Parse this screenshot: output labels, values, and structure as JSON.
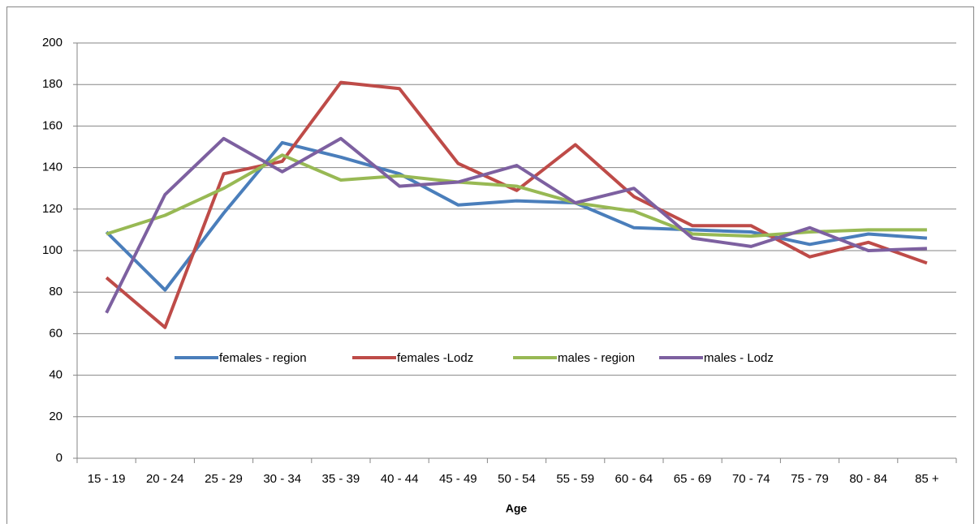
{
  "chart_data": {
    "type": "line",
    "x_label": "Age",
    "categories": [
      "15 - 19",
      "20 - 24",
      "25 - 29",
      "30 - 34",
      "35 - 39",
      "40 - 44",
      "45 - 49",
      "50 - 54",
      "55 - 59",
      "60 - 64",
      "65 - 69",
      "70 - 74",
      "75 - 79",
      "80 - 84",
      "85 +"
    ],
    "series": [
      {
        "name": "females - region",
        "color": "#4a7ebb",
        "values": [
          109,
          81,
          118,
          152,
          145,
          137,
          122,
          124,
          123,
          111,
          110,
          109,
          103,
          108,
          106
        ]
      },
      {
        "name": "females -Lodz",
        "color": "#be4b48",
        "values": [
          87,
          63,
          137,
          143,
          181,
          178,
          142,
          129,
          151,
          126,
          112,
          112,
          97,
          104,
          94
        ]
      },
      {
        "name": "males - region",
        "color": "#98b954",
        "values": [
          108,
          117,
          130,
          146,
          134,
          136,
          133,
          131,
          123,
          119,
          108,
          107,
          109,
          110,
          110
        ]
      },
      {
        "name": "males - Lodz",
        "color": "#7d60a0",
        "values": [
          70,
          127,
          154,
          138,
          154,
          131,
          133,
          141,
          123,
          130,
          106,
          102,
          111,
          100,
          101
        ]
      }
    ],
    "ylim": [
      0,
      200
    ],
    "yticks": [
      0,
      20,
      40,
      60,
      80,
      100,
      120,
      140,
      160,
      180,
      200
    ],
    "grid": true
  }
}
